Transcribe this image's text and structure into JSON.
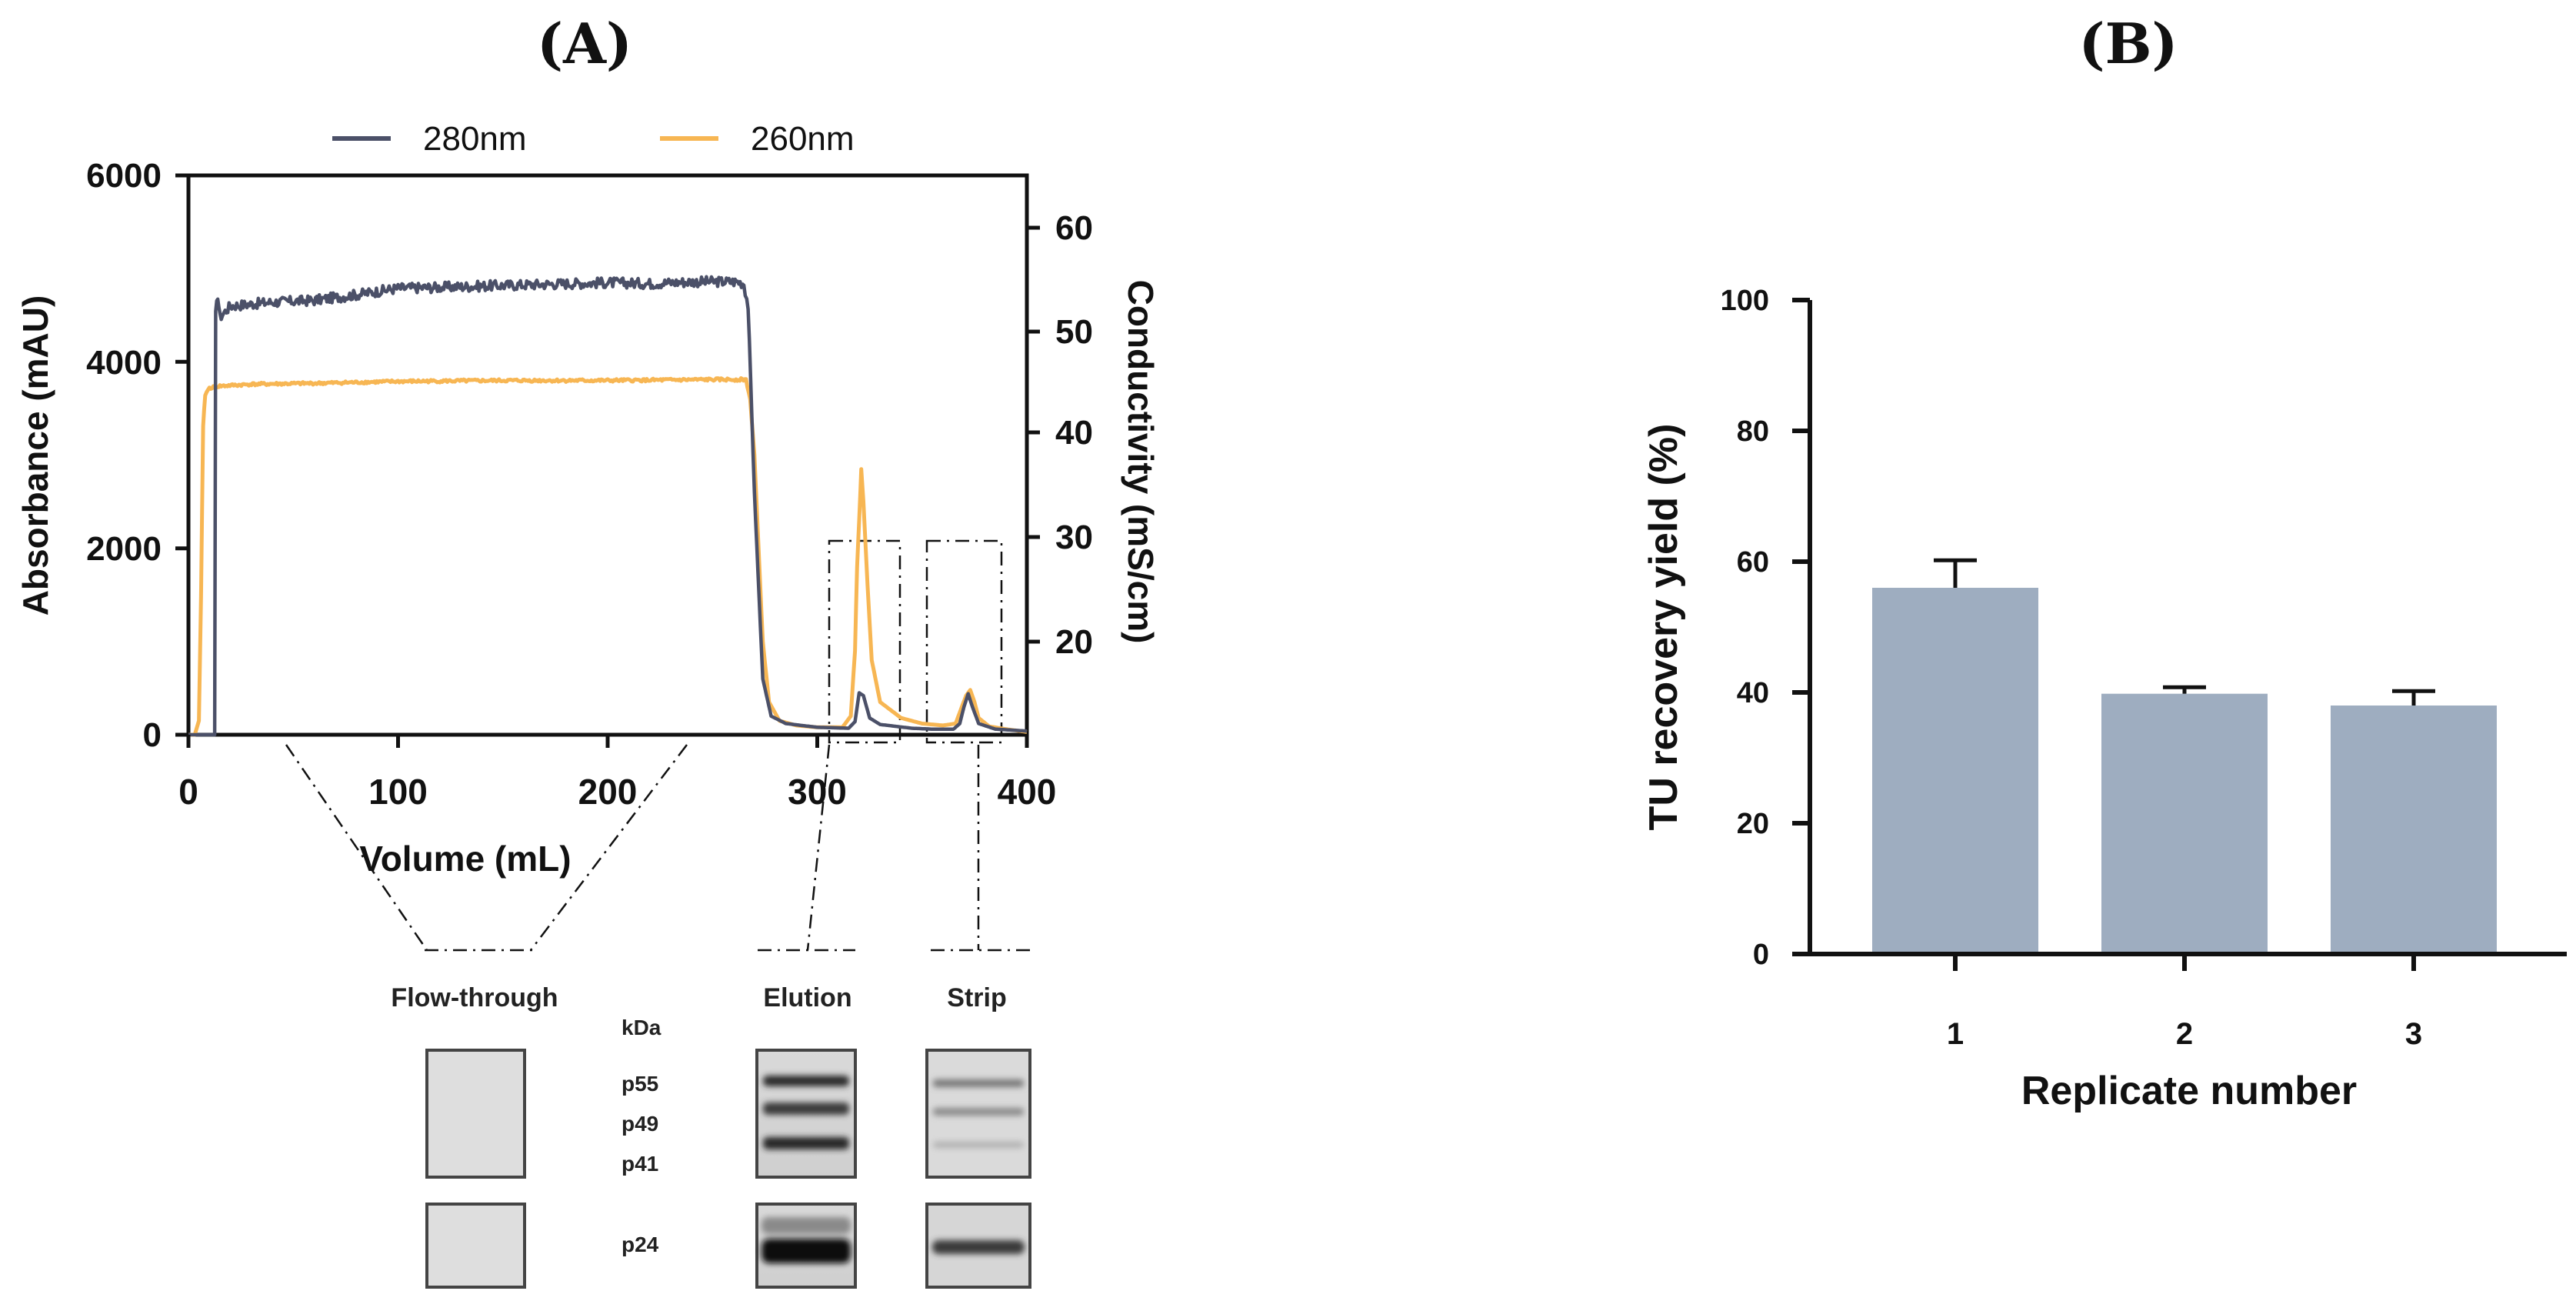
{
  "panels": {
    "a_label": "(A)",
    "b_label": "(B)"
  },
  "chart_data": [
    {
      "id": "A",
      "type": "line",
      "title": "",
      "xlabel": "Volume (mL)",
      "ylabel": "Absorbance (mAU)",
      "y2label": "Conductivity (mS/cm)",
      "xlim": [
        0,
        400
      ],
      "ylim": [
        0,
        6000
      ],
      "y2lim": [
        10.5,
        64
      ],
      "x_ticks": [
        "0",
        "100",
        "200",
        "300",
        "400"
      ],
      "y_ticks": [
        "0",
        "2000",
        "4000",
        "6000"
      ],
      "y2_ticks": [
        "20",
        "30",
        "40",
        "50",
        "60"
      ],
      "legend": [
        "280nm",
        "260nm"
      ],
      "legend_position": "top",
      "series": [
        {
          "name": "280nm",
          "color": "#4b5068",
          "points": [
            [
              0,
              0
            ],
            [
              11,
              0
            ],
            [
              12.5,
              0
            ],
            [
              13,
              4500
            ],
            [
              14,
              4720
            ],
            [
              15,
              4480
            ],
            [
              20,
              4600
            ],
            [
              40,
              4640
            ],
            [
              60,
              4660
            ],
            [
              80,
              4720
            ],
            [
              100,
              4790
            ],
            [
              120,
              4800
            ],
            [
              150,
              4820
            ],
            [
              180,
              4840
            ],
            [
              200,
              4850
            ],
            [
              220,
              4840
            ],
            [
              240,
              4860
            ],
            [
              262,
              4860
            ],
            [
              265,
              4840
            ],
            [
              267,
              4600
            ],
            [
              270,
              2600
            ],
            [
              274,
              600
            ],
            [
              278,
              200
            ],
            [
              285,
              120
            ],
            [
              300,
              80
            ],
            [
              315,
              70
            ],
            [
              318,
              140
            ],
            [
              320,
              450
            ],
            [
              322,
              420
            ],
            [
              325,
              180
            ],
            [
              330,
              110
            ],
            [
              345,
              70
            ],
            [
              355,
              60
            ],
            [
              365,
              60
            ],
            [
              368,
              120
            ],
            [
              370,
              300
            ],
            [
              372,
              440
            ],
            [
              374,
              300
            ],
            [
              377,
              120
            ],
            [
              385,
              60
            ],
            [
              400,
              40
            ]
          ]
        },
        {
          "name": "260nm",
          "color": "#f7b653",
          "points": [
            [
              0,
              0
            ],
            [
              3,
              0
            ],
            [
              5,
              150
            ],
            [
              6,
              1500
            ],
            [
              7,
              3300
            ],
            [
              8,
              3650
            ],
            [
              10,
              3720
            ],
            [
              15,
              3740
            ],
            [
              30,
              3760
            ],
            [
              60,
              3770
            ],
            [
              100,
              3790
            ],
            [
              150,
              3800
            ],
            [
              200,
              3800
            ],
            [
              250,
              3810
            ],
            [
              266,
              3810
            ],
            [
              268,
              3600
            ],
            [
              270,
              3000
            ],
            [
              272,
              2000
            ],
            [
              274,
              1000
            ],
            [
              277,
              350
            ],
            [
              282,
              150
            ],
            [
              290,
              100
            ],
            [
              300,
              80
            ],
            [
              312,
              80
            ],
            [
              316,
              200
            ],
            [
              318,
              900
            ],
            [
              319,
              1800
            ],
            [
              320,
              2300
            ],
            [
              321,
              2850
            ],
            [
              322,
              2500
            ],
            [
              324,
              1600
            ],
            [
              326,
              800
            ],
            [
              330,
              350
            ],
            [
              340,
              180
            ],
            [
              350,
              120
            ],
            [
              360,
              100
            ],
            [
              366,
              120
            ],
            [
              369,
              300
            ],
            [
              371,
              420
            ],
            [
              373,
              480
            ],
            [
              375,
              350
            ],
            [
              377,
              180
            ],
            [
              382,
              90
            ],
            [
              390,
              60
            ],
            [
              400,
              30
            ]
          ]
        }
      ]
    },
    {
      "id": "B",
      "type": "bar",
      "title": "",
      "xlabel": "Replicate number",
      "ylabel": "TU recovery yield (%)",
      "ylim": [
        0,
        100
      ],
      "y_ticks": [
        "0",
        "20",
        "40",
        "60",
        "80",
        "100"
      ],
      "categories": [
        "1",
        "2",
        "3"
      ],
      "values": [
        56,
        39.8,
        38
      ],
      "error_upper": [
        60.2,
        40.8,
        40.2
      ],
      "bar_color": "#9eadc0"
    }
  ],
  "blot": {
    "labels": {
      "flow_through": "Flow-through",
      "elution": "Elution",
      "strip": "Strip",
      "kda": "kDa"
    },
    "markers": [
      "p55",
      "p49",
      "p41",
      "p24"
    ]
  }
}
